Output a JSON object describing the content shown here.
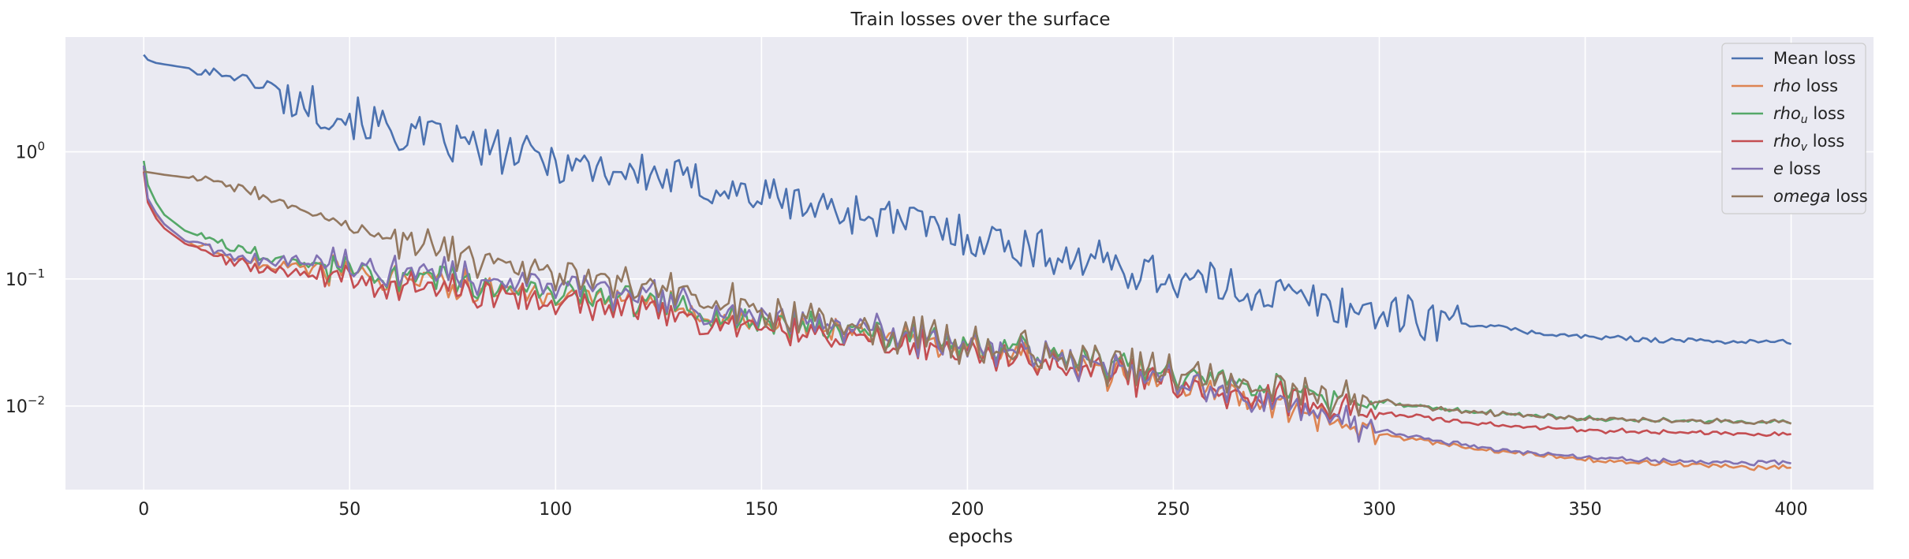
{
  "chart_data": {
    "type": "line",
    "title": "Train losses over the surface",
    "xlabel": "epochs",
    "ylabel": "",
    "xlim": [
      -19,
      420
    ],
    "ylim": [
      0.0022,
      8.0
    ],
    "yscale": "log",
    "xticks": [
      0,
      50,
      100,
      150,
      200,
      250,
      300,
      350,
      400
    ],
    "yticks": [
      {
        "value": 0.01,
        "base": "10",
        "exp": "−2"
      },
      {
        "value": 0.1,
        "base": "10",
        "exp": "−1"
      },
      {
        "value": 1,
        "base": "10",
        "exp": "0"
      }
    ],
    "grid": true,
    "legend_position": "top-right",
    "background": "#eaeaf2",
    "series": [
      {
        "name": "Mean loss",
        "name_main": "Mean",
        "name_sub": "",
        "italic": false,
        "color": "#4c72b0",
        "points": [
          [
            0,
            5.8
          ],
          [
            1,
            5.3
          ],
          [
            3,
            5.0
          ],
          [
            10,
            4.6
          ],
          [
            20,
            4.1
          ],
          [
            25,
            3.7
          ],
          [
            30,
            3.1
          ],
          [
            35,
            2.6
          ],
          [
            40,
            2.4
          ],
          [
            45,
            2.1
          ],
          [
            50,
            1.9
          ],
          [
            55,
            1.7
          ],
          [
            60,
            1.45
          ],
          [
            65,
            1.35
          ],
          [
            70,
            1.25
          ],
          [
            75,
            1.15
          ],
          [
            80,
            1.1
          ],
          [
            85,
            1.02
          ],
          [
            90,
            0.95
          ],
          [
            95,
            0.9
          ],
          [
            100,
            0.85
          ],
          [
            105,
            0.8
          ],
          [
            110,
            0.76
          ],
          [
            115,
            0.72
          ],
          [
            120,
            0.68
          ],
          [
            125,
            0.64
          ],
          [
            130,
            0.6
          ],
          [
            135,
            0.56
          ],
          [
            140,
            0.52
          ],
          [
            145,
            0.48
          ],
          [
            150,
            0.45
          ],
          [
            155,
            0.42
          ],
          [
            160,
            0.39
          ],
          [
            165,
            0.36
          ],
          [
            170,
            0.34
          ],
          [
            175,
            0.32
          ],
          [
            180,
            0.3
          ],
          [
            185,
            0.28
          ],
          [
            190,
            0.26
          ],
          [
            195,
            0.24
          ],
          [
            200,
            0.22
          ],
          [
            205,
            0.205
          ],
          [
            210,
            0.19
          ],
          [
            215,
            0.175
          ],
          [
            220,
            0.16
          ],
          [
            225,
            0.15
          ],
          [
            230,
            0.14
          ],
          [
            235,
            0.13
          ],
          [
            240,
            0.12
          ],
          [
            245,
            0.11
          ],
          [
            250,
            0.1
          ],
          [
            255,
            0.095
          ],
          [
            260,
            0.09
          ],
          [
            265,
            0.085
          ],
          [
            270,
            0.08
          ],
          [
            275,
            0.075
          ],
          [
            280,
            0.07
          ],
          [
            285,
            0.066
          ],
          [
            290,
            0.062
          ],
          [
            295,
            0.058
          ],
          [
            300,
            0.055
          ],
          [
            305,
            0.052
          ],
          [
            310,
            0.049
          ],
          [
            315,
            0.047
          ],
          [
            320,
            0.045
          ],
          [
            325,
            0.043
          ],
          [
            330,
            0.041
          ],
          [
            335,
            0.039
          ],
          [
            340,
            0.037
          ],
          [
            345,
            0.036
          ],
          [
            350,
            0.035
          ],
          [
            360,
            0.034
          ],
          [
            370,
            0.033
          ],
          [
            380,
            0.0325
          ],
          [
            390,
            0.032
          ],
          [
            400,
            0.032
          ]
        ]
      },
      {
        "name": "rho loss",
        "name_main": "rho",
        "name_sub": "",
        "italic": true,
        "color": "#dd8452",
        "points": [
          [
            0,
            0.75
          ],
          [
            1,
            0.42
          ],
          [
            3,
            0.32
          ],
          [
            5,
            0.27
          ],
          [
            10,
            0.2
          ],
          [
            20,
            0.15
          ],
          [
            30,
            0.13
          ],
          [
            40,
            0.12
          ],
          [
            50,
            0.115
          ],
          [
            60,
            0.1
          ],
          [
            70,
            0.09
          ],
          [
            80,
            0.085
          ],
          [
            90,
            0.08
          ],
          [
            100,
            0.075
          ],
          [
            110,
            0.068
          ],
          [
            120,
            0.062
          ],
          [
            130,
            0.056
          ],
          [
            140,
            0.05
          ],
          [
            150,
            0.045
          ],
          [
            160,
            0.042
          ],
          [
            170,
            0.038
          ],
          [
            180,
            0.035
          ],
          [
            190,
            0.032
          ],
          [
            200,
            0.03
          ],
          [
            210,
            0.026
          ],
          [
            220,
            0.023
          ],
          [
            230,
            0.02
          ],
          [
            240,
            0.017
          ],
          [
            250,
            0.015
          ],
          [
            260,
            0.013
          ],
          [
            270,
            0.011
          ],
          [
            280,
            0.0095
          ],
          [
            290,
            0.0075
          ],
          [
            300,
            0.006
          ],
          [
            310,
            0.0053
          ],
          [
            320,
            0.0048
          ],
          [
            330,
            0.0044
          ],
          [
            340,
            0.0041
          ],
          [
            350,
            0.0038
          ],
          [
            360,
            0.0036
          ],
          [
            370,
            0.0035
          ],
          [
            380,
            0.0034
          ],
          [
            390,
            0.0033
          ],
          [
            400,
            0.0033
          ]
        ]
      },
      {
        "name": "rho_u loss",
        "name_main": "rho",
        "name_sub": "u",
        "italic": true,
        "color": "#55a868",
        "points": [
          [
            0,
            0.85
          ],
          [
            1,
            0.55
          ],
          [
            3,
            0.4
          ],
          [
            5,
            0.32
          ],
          [
            10,
            0.24
          ],
          [
            20,
            0.18
          ],
          [
            30,
            0.15
          ],
          [
            40,
            0.135
          ],
          [
            50,
            0.12
          ],
          [
            60,
            0.108
          ],
          [
            70,
            0.098
          ],
          [
            80,
            0.09
          ],
          [
            90,
            0.083
          ],
          [
            100,
            0.077
          ],
          [
            110,
            0.071
          ],
          [
            120,
            0.065
          ],
          [
            130,
            0.059
          ],
          [
            140,
            0.053
          ],
          [
            150,
            0.048
          ],
          [
            160,
            0.044
          ],
          [
            170,
            0.04
          ],
          [
            180,
            0.037
          ],
          [
            190,
            0.034
          ],
          [
            200,
            0.031
          ],
          [
            210,
            0.028
          ],
          [
            220,
            0.025
          ],
          [
            230,
            0.022
          ],
          [
            240,
            0.02
          ],
          [
            250,
            0.018
          ],
          [
            260,
            0.016
          ],
          [
            270,
            0.014
          ],
          [
            280,
            0.013
          ],
          [
            290,
            0.012
          ],
          [
            300,
            0.011
          ],
          [
            310,
            0.0098
          ],
          [
            320,
            0.0092
          ],
          [
            330,
            0.0087
          ],
          [
            340,
            0.0083
          ],
          [
            350,
            0.008
          ],
          [
            360,
            0.0078
          ],
          [
            370,
            0.0077
          ],
          [
            380,
            0.0076
          ],
          [
            390,
            0.0075
          ],
          [
            400,
            0.0075
          ]
        ]
      },
      {
        "name": "rho_v loss",
        "name_main": "rho",
        "name_sub": "v",
        "italic": true,
        "color": "#c44e52",
        "points": [
          [
            0,
            0.7
          ],
          [
            1,
            0.4
          ],
          [
            3,
            0.3
          ],
          [
            5,
            0.25
          ],
          [
            10,
            0.19
          ],
          [
            20,
            0.14
          ],
          [
            30,
            0.12
          ],
          [
            40,
            0.11
          ],
          [
            50,
            0.1
          ],
          [
            60,
            0.092
          ],
          [
            70,
            0.085
          ],
          [
            80,
            0.078
          ],
          [
            90,
            0.072
          ],
          [
            100,
            0.066
          ],
          [
            110,
            0.06
          ],
          [
            120,
            0.055
          ],
          [
            130,
            0.05
          ],
          [
            140,
            0.046
          ],
          [
            150,
            0.042
          ],
          [
            160,
            0.038
          ],
          [
            170,
            0.035
          ],
          [
            180,
            0.032
          ],
          [
            190,
            0.029
          ],
          [
            200,
            0.027
          ],
          [
            210,
            0.024
          ],
          [
            220,
            0.021
          ],
          [
            230,
            0.019
          ],
          [
            240,
            0.017
          ],
          [
            250,
            0.015
          ],
          [
            260,
            0.013
          ],
          [
            270,
            0.012
          ],
          [
            280,
            0.011
          ],
          [
            290,
            0.0095
          ],
          [
            300,
            0.0088
          ],
          [
            310,
            0.0082
          ],
          [
            320,
            0.0076
          ],
          [
            330,
            0.0071
          ],
          [
            340,
            0.0068
          ],
          [
            350,
            0.0065
          ],
          [
            360,
            0.0063
          ],
          [
            370,
            0.0062
          ],
          [
            380,
            0.0061
          ],
          [
            390,
            0.006
          ],
          [
            400,
            0.006
          ]
        ]
      },
      {
        "name": "e loss",
        "name_main": "e",
        "name_sub": "",
        "italic": true,
        "color": "#8172b3",
        "points": [
          [
            0,
            0.78
          ],
          [
            1,
            0.43
          ],
          [
            3,
            0.33
          ],
          [
            5,
            0.27
          ],
          [
            10,
            0.2
          ],
          [
            20,
            0.155
          ],
          [
            30,
            0.14
          ],
          [
            40,
            0.135
          ],
          [
            50,
            0.13
          ],
          [
            60,
            0.12
          ],
          [
            70,
            0.11
          ],
          [
            80,
            0.1
          ],
          [
            90,
            0.095
          ],
          [
            100,
            0.09
          ],
          [
            110,
            0.082
          ],
          [
            120,
            0.074
          ],
          [
            130,
            0.066
          ],
          [
            140,
            0.059
          ],
          [
            150,
            0.052
          ],
          [
            160,
            0.047
          ],
          [
            170,
            0.042
          ],
          [
            180,
            0.038
          ],
          [
            190,
            0.034
          ],
          [
            200,
            0.031
          ],
          [
            210,
            0.027
          ],
          [
            220,
            0.024
          ],
          [
            230,
            0.021
          ],
          [
            240,
            0.018
          ],
          [
            250,
            0.016
          ],
          [
            260,
            0.014
          ],
          [
            270,
            0.012
          ],
          [
            280,
            0.01
          ],
          [
            290,
            0.008
          ],
          [
            300,
            0.0065
          ],
          [
            310,
            0.0056
          ],
          [
            320,
            0.005
          ],
          [
            330,
            0.0045
          ],
          [
            340,
            0.0042
          ],
          [
            350,
            0.004
          ],
          [
            360,
            0.0038
          ],
          [
            370,
            0.0037
          ],
          [
            380,
            0.0036
          ],
          [
            390,
            0.0036
          ],
          [
            400,
            0.0036
          ]
        ]
      },
      {
        "name": "omega loss",
        "name_main": "omega",
        "name_sub": "",
        "italic": true,
        "color": "#937860",
        "points": [
          [
            0,
            0.7
          ],
          [
            5,
            0.66
          ],
          [
            10,
            0.63
          ],
          [
            15,
            0.6
          ],
          [
            20,
            0.56
          ],
          [
            25,
            0.5
          ],
          [
            30,
            0.44
          ],
          [
            35,
            0.38
          ],
          [
            40,
            0.33
          ],
          [
            45,
            0.29
          ],
          [
            50,
            0.255
          ],
          [
            55,
            0.23
          ],
          [
            60,
            0.21
          ],
          [
            65,
            0.19
          ],
          [
            70,
            0.175
          ],
          [
            75,
            0.16
          ],
          [
            80,
            0.148
          ],
          [
            85,
            0.137
          ],
          [
            90,
            0.127
          ],
          [
            95,
            0.118
          ],
          [
            100,
            0.11
          ],
          [
            110,
            0.096
          ],
          [
            120,
            0.084
          ],
          [
            130,
            0.074
          ],
          [
            140,
            0.065
          ],
          [
            150,
            0.057
          ],
          [
            160,
            0.05
          ],
          [
            170,
            0.044
          ],
          [
            180,
            0.039
          ],
          [
            190,
            0.035
          ],
          [
            200,
            0.031
          ],
          [
            210,
            0.028
          ],
          [
            220,
            0.025
          ],
          [
            230,
            0.022
          ],
          [
            240,
            0.02
          ],
          [
            250,
            0.018
          ],
          [
            260,
            0.016
          ],
          [
            270,
            0.014
          ],
          [
            280,
            0.013
          ],
          [
            290,
            0.012
          ],
          [
            300,
            0.011
          ],
          [
            310,
            0.0098
          ],
          [
            320,
            0.0092
          ],
          [
            330,
            0.0087
          ],
          [
            340,
            0.0083
          ],
          [
            350,
            0.008
          ],
          [
            360,
            0.0078
          ],
          [
            370,
            0.0077
          ],
          [
            380,
            0.0076
          ],
          [
            390,
            0.0075
          ],
          [
            400,
            0.0075
          ]
        ]
      }
    ]
  }
}
